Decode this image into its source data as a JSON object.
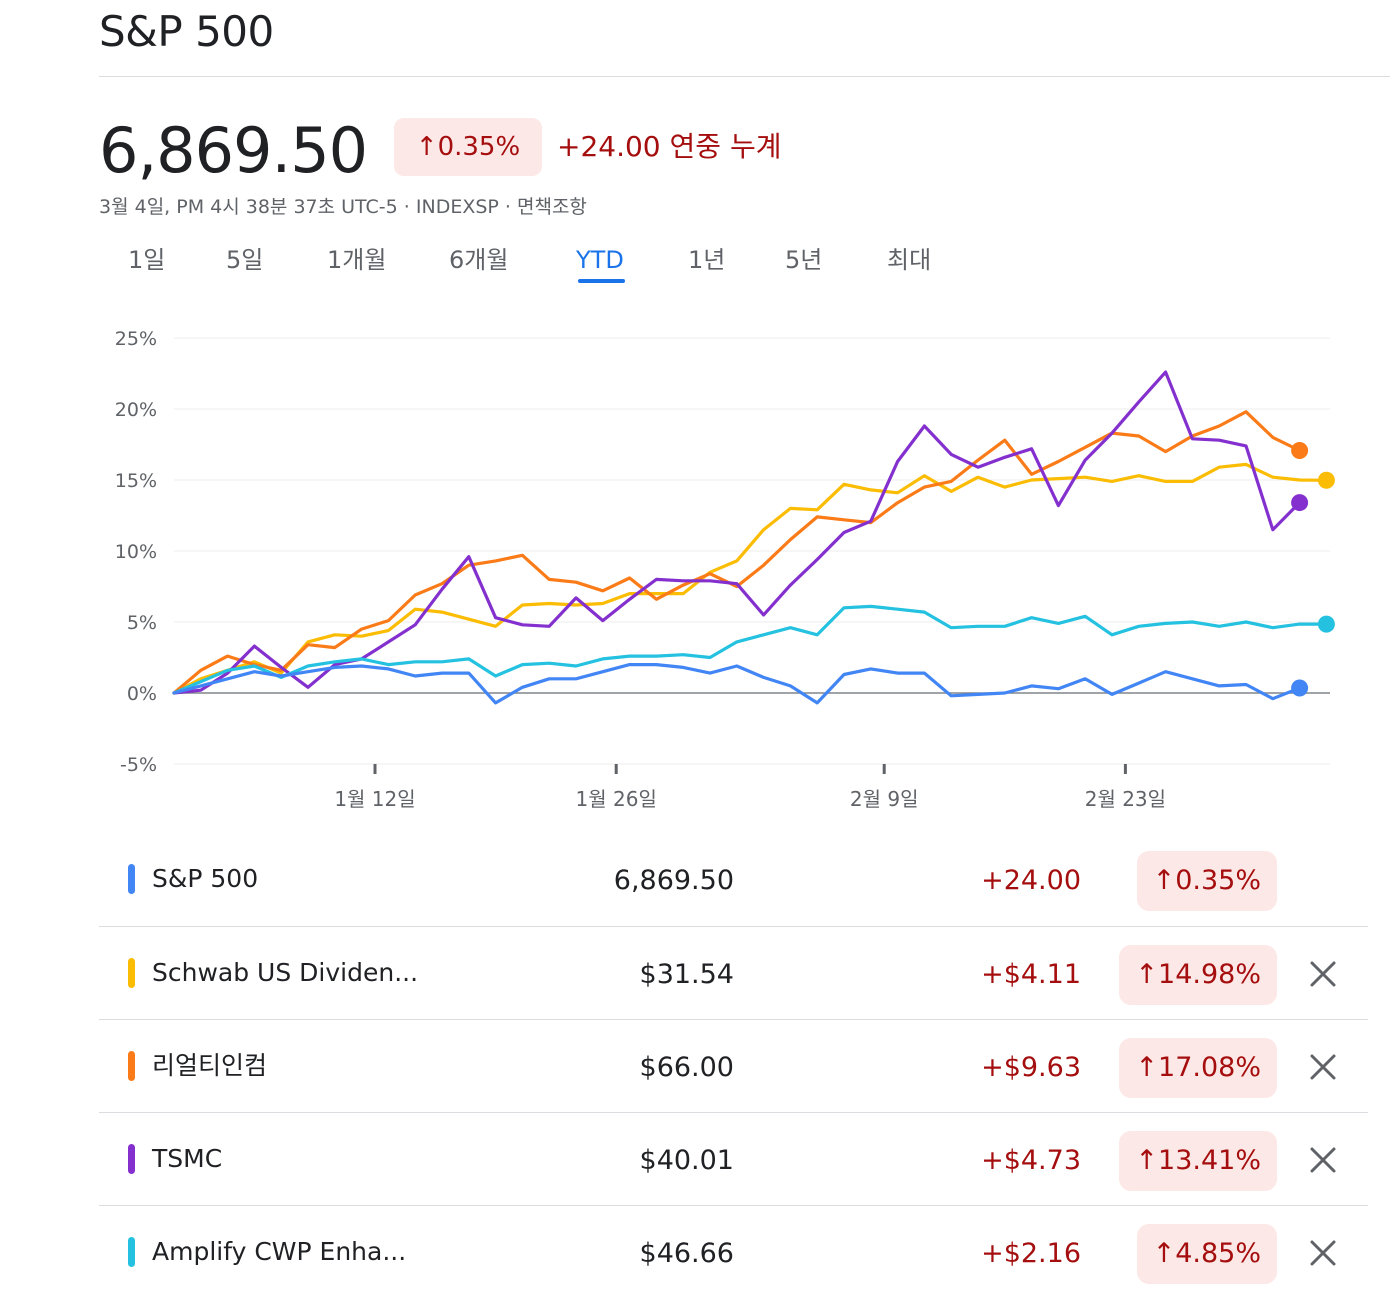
{
  "header": {
    "title": "S&P 500",
    "price": "6,869.50",
    "pct_change": "↑0.35%",
    "change_text": "+24.00 연중 누계",
    "meta": "3월 4일, PM 4시 38분 37초 UTC-5 · INDEXSP · 면책조항"
  },
  "tabs": [
    {
      "label": "1일"
    },
    {
      "label": "5일"
    },
    {
      "label": "1개월"
    },
    {
      "label": "6개월"
    },
    {
      "label": "YTD",
      "active": true
    },
    {
      "label": "1년"
    },
    {
      "label": "5년"
    },
    {
      "label": "최대"
    }
  ],
  "chart_data": {
    "type": "line",
    "title": "",
    "xlabel": "",
    "ylabel": "",
    "ylim": [
      -5,
      25
    ],
    "y_ticks": [
      -5,
      0,
      5,
      10,
      15,
      20,
      25
    ],
    "y_tick_labels": [
      "-5%",
      "0%",
      "5%",
      "10%",
      "15%",
      "20%",
      "25%"
    ],
    "x_ticks": [
      {
        "x": 7.5,
        "label": "1월 12일"
      },
      {
        "x": 16.5,
        "label": "1월 26일"
      },
      {
        "x": 26.5,
        "label": "2월 9일"
      },
      {
        "x": 35.5,
        "label": "2월 23일"
      }
    ],
    "x_count": 44,
    "series": [
      {
        "name": "Schwab US Dividen...",
        "color": "#fbbc04",
        "x": [
          0,
          1,
          2,
          3,
          4,
          5,
          6,
          7,
          8,
          9,
          10,
          11,
          12,
          13,
          14,
          15,
          16,
          17,
          18,
          19,
          20,
          21,
          22,
          23,
          24,
          25,
          26,
          27,
          28,
          29,
          30,
          31,
          32,
          33,
          34,
          35,
          36,
          37,
          38,
          39,
          40,
          41,
          42,
          43
        ],
        "values": [
          0,
          1.0,
          1.6,
          2.2,
          1.4,
          3.6,
          4.1,
          4.0,
          4.4,
          5.9,
          5.7,
          5.2,
          4.7,
          6.2,
          6.3,
          6.2,
          6.3,
          7.0,
          7.0,
          7.0,
          8.5,
          9.3,
          11.5,
          13.0,
          12.9,
          14.7,
          14.3,
          14.1,
          15.3,
          14.2,
          15.2,
          14.5,
          15.0,
          15.1,
          15.2,
          14.9,
          15.3,
          14.9,
          14.9,
          15.9,
          16.1,
          15.2,
          15.0,
          14.98
        ]
      },
      {
        "name": "리얼티인컴",
        "color": "#fa7b17",
        "x": [
          0,
          1,
          2,
          3,
          4,
          5,
          6,
          7,
          8,
          9,
          10,
          11,
          12,
          13,
          14,
          15,
          16,
          17,
          18,
          19,
          20,
          21,
          22,
          23,
          24,
          25,
          26,
          27,
          28,
          29,
          30,
          31,
          32,
          33,
          34,
          35,
          36,
          37,
          38,
          39,
          40,
          41,
          42
        ],
        "values": [
          0,
          1.6,
          2.6,
          2.0,
          1.6,
          3.4,
          3.2,
          4.5,
          5.1,
          6.9,
          7.7,
          9.0,
          9.3,
          9.7,
          8.0,
          7.8,
          7.2,
          8.1,
          6.6,
          7.6,
          8.4,
          7.5,
          9.0,
          10.8,
          12.4,
          12.2,
          12.0,
          13.4,
          14.5,
          14.9,
          16.4,
          17.8,
          15.4,
          16.3,
          17.3,
          18.3,
          18.1,
          17.0,
          18.1,
          18.8,
          19.8,
          18.0,
          17.08
        ]
      },
      {
        "name": "TSMC",
        "color": "#8430ce",
        "x": [
          0,
          1,
          2,
          3,
          4,
          5,
          6,
          7,
          8,
          9,
          10,
          11,
          12,
          13,
          14,
          15,
          16,
          17,
          18,
          19,
          20,
          21,
          22,
          23,
          24,
          25,
          26,
          27,
          28,
          29,
          30,
          31,
          32,
          33,
          34,
          35,
          36,
          37,
          38,
          39,
          40,
          41,
          42
        ],
        "values": [
          0,
          0.2,
          1.4,
          3.3,
          1.8,
          0.4,
          2.0,
          2.4,
          3.6,
          4.8,
          7.3,
          9.6,
          5.3,
          4.8,
          4.7,
          6.7,
          5.1,
          6.6,
          8.0,
          7.9,
          7.9,
          7.7,
          5.5,
          7.6,
          9.4,
          11.3,
          12.1,
          16.3,
          18.8,
          16.8,
          15.9,
          16.6,
          17.2,
          13.2,
          16.4,
          18.3,
          20.5,
          22.6,
          17.9,
          17.8,
          17.4,
          11.5,
          13.41
        ]
      },
      {
        "name": "Amplify CWP Enha...",
        "color": "#24c1e0",
        "x": [
          0,
          1,
          2,
          3,
          4,
          5,
          6,
          7,
          8,
          9,
          10,
          11,
          12,
          13,
          14,
          15,
          16,
          17,
          18,
          19,
          20,
          21,
          22,
          23,
          24,
          25,
          26,
          27,
          28,
          29,
          30,
          31,
          32,
          33,
          34,
          35,
          36,
          37,
          38,
          39,
          40,
          41,
          42,
          43
        ],
        "values": [
          0,
          0.8,
          1.6,
          1.9,
          1.1,
          1.9,
          2.2,
          2.4,
          2.0,
          2.2,
          2.2,
          2.4,
          1.2,
          2.0,
          2.1,
          1.9,
          2.4,
          2.6,
          2.6,
          2.7,
          2.5,
          3.6,
          4.1,
          4.6,
          4.1,
          6.0,
          6.1,
          5.9,
          5.7,
          4.6,
          4.7,
          4.7,
          5.3,
          4.9,
          5.4,
          4.1,
          4.7,
          4.9,
          5.0,
          4.7,
          5.0,
          4.6,
          4.85,
          4.85
        ]
      },
      {
        "name": "S&P 500",
        "color": "#4285f4",
        "x": [
          0,
          1,
          2,
          3,
          4,
          5,
          6,
          7,
          8,
          9,
          10,
          11,
          12,
          13,
          14,
          15,
          16,
          17,
          18,
          19,
          20,
          21,
          22,
          23,
          24,
          25,
          26,
          27,
          28,
          29,
          30,
          31,
          32,
          33,
          34,
          35,
          36,
          37,
          38,
          39,
          40,
          41,
          42
        ],
        "values": [
          0,
          0.5,
          1.0,
          1.5,
          1.2,
          1.5,
          1.8,
          1.9,
          1.7,
          1.2,
          1.4,
          1.4,
          -0.7,
          0.4,
          1.0,
          1.0,
          1.5,
          2.0,
          2.0,
          1.8,
          1.4,
          1.9,
          1.1,
          0.5,
          -0.7,
          1.3,
          1.7,
          1.4,
          1.4,
          -0.2,
          -0.1,
          0.0,
          0.5,
          0.3,
          1.0,
          -0.1,
          0.7,
          1.5,
          1.0,
          0.5,
          0.6,
          -0.4,
          0.35
        ]
      }
    ]
  },
  "comparison_rows": [
    {
      "name": "S&P 500",
      "price": "6,869.50",
      "change": "+24.00",
      "pct": "↑0.35%",
      "color": "#4285f4",
      "removable": false
    },
    {
      "name": "Schwab US Dividen...",
      "price": "$31.54",
      "change": "+$4.11",
      "pct": "↑14.98%",
      "color": "#fbbc04",
      "removable": true
    },
    {
      "name": "리얼티인컴",
      "price": "$66.00",
      "change": "+$9.63",
      "pct": "↑17.08%",
      "color": "#fa7b17",
      "removable": true
    },
    {
      "name": "TSMC",
      "price": "$40.01",
      "change": "+$4.73",
      "pct": "↑13.41%",
      "color": "#8430ce",
      "removable": true
    },
    {
      "name": "Amplify CWP Enha...",
      "price": "$46.66",
      "change": "+$2.16",
      "pct": "↑4.85%",
      "color": "#24c1e0",
      "removable": true
    }
  ]
}
